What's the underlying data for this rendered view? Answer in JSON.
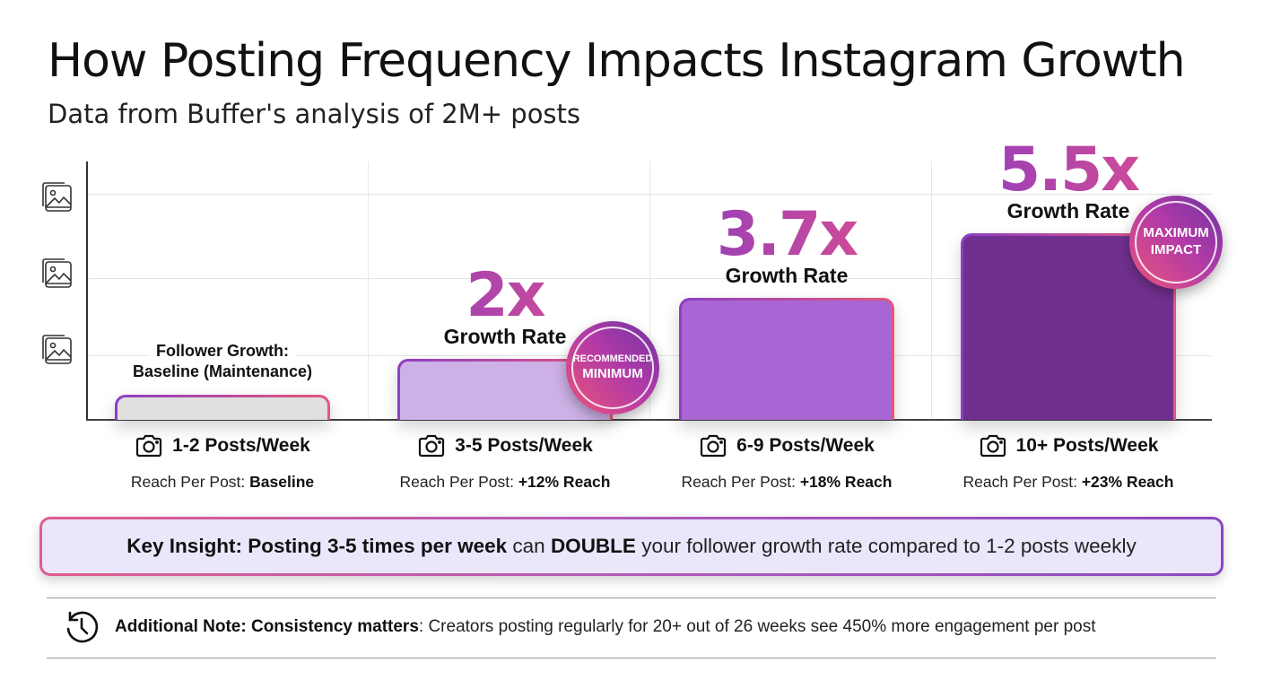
{
  "header": {
    "title": "How Posting Frequency Impacts Instagram Growth",
    "subtitle": "Data from Buffer's analysis of 2M+ posts"
  },
  "chart_data": {
    "type": "bar",
    "title": "How Posting Frequency Impacts Instagram Growth",
    "subtitle": "Data from Buffer's analysis of 2M+ posts",
    "categories": [
      "1-2 Posts/Week",
      "3-5 Posts/Week",
      "6-9 Posts/Week",
      "10+ Posts/Week"
    ],
    "values": [
      1,
      2,
      3.7,
      5.5
    ],
    "value_labels": [
      "Follower Growth: Baseline (Maintenance)",
      "2x",
      "3.7x",
      "5.5x"
    ],
    "value_sublabel": "Growth Rate",
    "baseline_label": [
      "Follower Growth:",
      "Baseline (Maintenance)"
    ],
    "bar_colors": [
      "#e0e0e0",
      "#cdb0e6",
      "#a866d4",
      "#71308f"
    ],
    "badges": [
      null,
      [
        "RECOMMENDED",
        "MINIMUM"
      ],
      null,
      [
        "MAXIMUM",
        "IMPACT"
      ]
    ],
    "reach_prefix": "Reach Per Post:",
    "reach": [
      "Baseline",
      "+12% Reach",
      "+18% Reach",
      "+23% Reach"
    ],
    "grid": true,
    "y_axis_icons": [
      "image-stack-icon",
      "image-stack-icon",
      "image-stack-icon"
    ],
    "category_icon": "camera-icon"
  },
  "insight": {
    "parts": [
      "Key Insight: Posting 3-5 times per week",
      " can ",
      "DOUBLE",
      " your follower growth rate compared to 1-2 posts weekly"
    ]
  },
  "note": {
    "icon": "history-clock-icon",
    "bold": "Additional Note: Consistency matters",
    ":": ":",
    "text": " Creators posting regularly for 20+ out of 26 weeks see 450% more engagement per post"
  },
  "colors": {
    "purple": "#8a3cc2",
    "pink": "#e2508a",
    "insight_bg": "#ece6fb"
  }
}
